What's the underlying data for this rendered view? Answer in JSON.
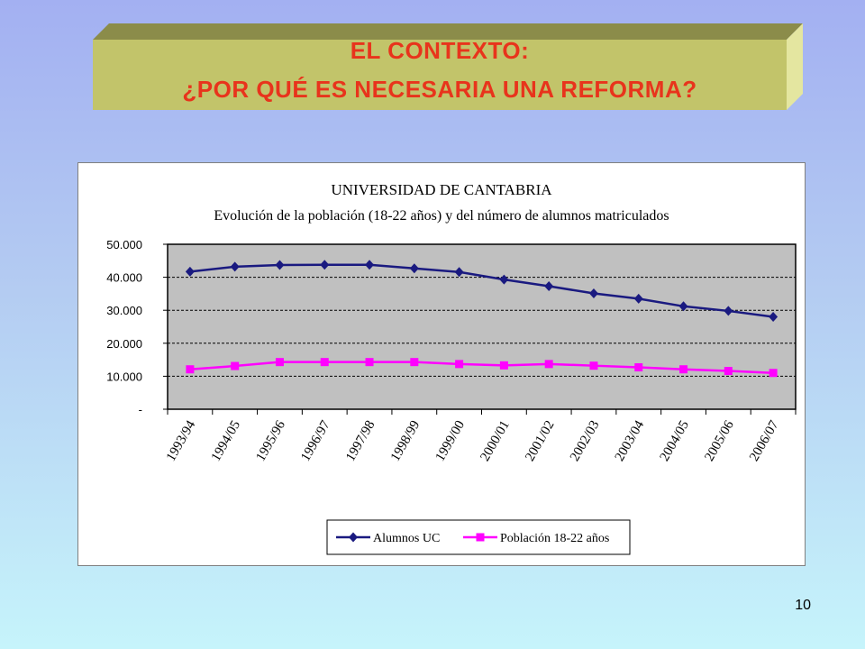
{
  "slide": {
    "title_line1": "EL CONTEXTO:",
    "title_line2": "¿POR QUÉ ES NECESARIA UNA REFORMA?",
    "page_number": "10"
  },
  "colors": {
    "title_text": "#e8341c",
    "title_box": "#c2c46a",
    "plot_area": "#c0c0c0",
    "series_alumnos": "#1a1a80",
    "series_poblacion": "#ff00ff"
  },
  "chart_data": {
    "type": "line",
    "title": "UNIVERSIDAD DE CANTABRIA",
    "subtitle": "Evolución de la población (18-22 años) y del número de alumnos matriculados",
    "categories": [
      "1993/94",
      "1994/05",
      "1995/96",
      "1996/97",
      "1997/98",
      "1998/99",
      "1999/00",
      "2000/01",
      "2001/02",
      "2002/03",
      "2003/04",
      "2004/05",
      "2005/06",
      "2006/07"
    ],
    "ylim": [
      0,
      50000
    ],
    "yticks": [
      0,
      10000,
      20000,
      30000,
      40000,
      50000
    ],
    "ytick_labels": [
      "-",
      "10.000",
      "20.000",
      "30.000",
      "40.000",
      "50.000"
    ],
    "grid": true,
    "legend_position": "bottom",
    "series": [
      {
        "name": "Alumnos UC",
        "marker": "diamond",
        "color": "#1a1a80",
        "values": [
          41700,
          43200,
          43700,
          43800,
          43800,
          42700,
          41600,
          39300,
          37300,
          35100,
          33500,
          31200,
          29800,
          28000
        ]
      },
      {
        "name": "Población 18-22 años",
        "marker": "square",
        "color": "#ff00ff",
        "values": [
          12100,
          13100,
          14300,
          14300,
          14300,
          14300,
          13700,
          13300,
          13700,
          13200,
          12700,
          12100,
          11600,
          11000
        ]
      }
    ]
  }
}
